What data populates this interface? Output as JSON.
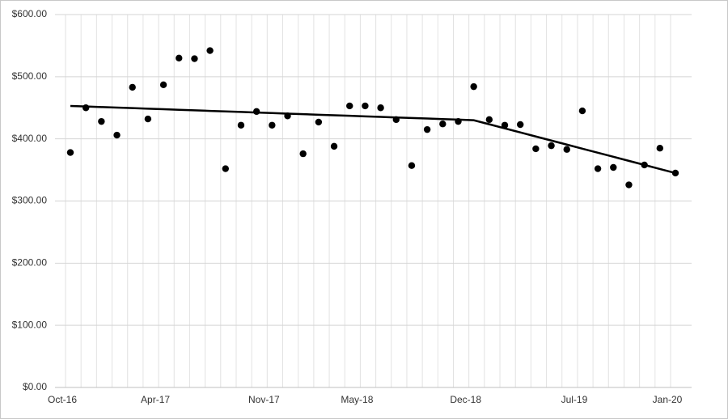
{
  "chart_data": {
    "type": "scatter",
    "categories": [
      "Oct-16",
      null,
      null,
      null,
      null,
      null,
      "Apr-17",
      null,
      null,
      null,
      null,
      null,
      null,
      "Nov-17",
      null,
      null,
      null,
      null,
      null,
      "May-18",
      null,
      null,
      null,
      null,
      null,
      null,
      "Dec-18",
      null,
      null,
      null,
      null,
      null,
      null,
      "Jul-19",
      null,
      null,
      null,
      null,
      null,
      "Jan-20"
    ],
    "series": [
      {
        "color": "#000000",
        "values": [
          378,
          450,
          428,
          406,
          483,
          432,
          487,
          530,
          529,
          542,
          352,
          422,
          444,
          422,
          437,
          376,
          427,
          388,
          453,
          453,
          450,
          431,
          357,
          415,
          424,
          428,
          484,
          431,
          422,
          423,
          384,
          389,
          383,
          445,
          352,
          354,
          326,
          358,
          385,
          345
        ]
      }
    ],
    "trend": {
      "color": "#000000",
      "values": [
        453,
        452.1,
        451.2,
        450.3,
        449.5,
        448.6,
        447.7,
        446.8,
        445.9,
        445,
        444.2,
        443.3,
        442.4,
        441.5,
        440.6,
        439.7,
        438.8,
        438,
        437.1,
        436.2,
        435.3,
        434.4,
        433.5,
        432.7,
        431.8,
        430.9,
        430,
        423.5,
        416.9,
        410.4,
        403.8,
        397.3,
        390.8,
        384.2,
        377.7,
        371.2,
        364.6,
        358.1,
        351.5,
        345
      ]
    },
    "ylim": [
      0,
      600
    ],
    "yticks": [
      {
        "value": 0,
        "label": "$0.00"
      },
      {
        "value": 100,
        "label": "$100.00"
      },
      {
        "value": 200,
        "label": "$200.00"
      },
      {
        "value": 300,
        "label": "$300.00"
      },
      {
        "value": 400,
        "label": "$400.00"
      },
      {
        "value": 500,
        "label": "$500.00"
      },
      {
        "value": 600,
        "label": "$600.00"
      }
    ],
    "grid": true
  }
}
